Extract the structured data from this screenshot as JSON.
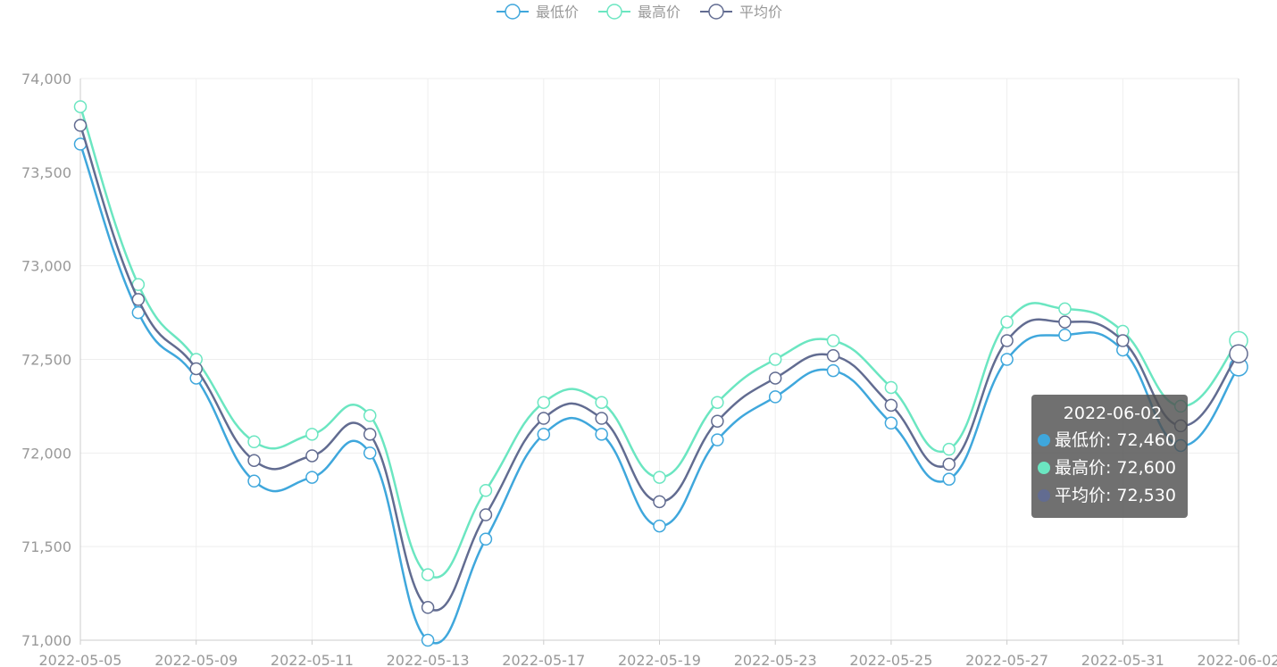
{
  "chart_data": {
    "type": "line",
    "smooth": true,
    "grid": true,
    "categories": [
      "2022-05-05",
      null,
      "2022-05-09",
      null,
      "2022-05-11",
      null,
      "2022-05-13",
      null,
      "2022-05-17",
      null,
      "2022-05-19",
      null,
      "2022-05-23",
      null,
      "2022-05-25",
      null,
      "2022-05-27",
      null,
      "2022-05-31",
      null,
      "2022-06-02"
    ],
    "series": [
      {
        "name": "最低价",
        "color": "#3fa7dc",
        "values": [
          73650,
          72750,
          72400,
          71850,
          71870,
          72000,
          71000,
          71540,
          72100,
          72100,
          71610,
          72070,
          72300,
          72440,
          72160,
          71860,
          72500,
          72630,
          72550,
          72040,
          72460
        ]
      },
      {
        "name": "最高价",
        "color": "#6be6c1",
        "values": [
          73850,
          72900,
          72500,
          72060,
          72100,
          72200,
          71350,
          71800,
          72270,
          72270,
          71870,
          72270,
          72500,
          72600,
          72350,
          72020,
          72700,
          72770,
          72650,
          72250,
          72600
        ]
      },
      {
        "name": "平均价",
        "color": "#626c91",
        "values": [
          73750,
          72820,
          72450,
          71960,
          71985,
          72100,
          71175,
          71670,
          72185,
          72185,
          71740,
          72170,
          72400,
          72520,
          72255,
          71940,
          72600,
          72700,
          72600,
          72145,
          72530
        ]
      }
    ],
    "ylim": [
      71000,
      74000
    ],
    "yticks": [
      {
        "value": 71000,
        "label": "71,000"
      },
      {
        "value": 71500,
        "label": "71,500"
      },
      {
        "value": 72000,
        "label": "72,000"
      },
      {
        "value": 72500,
        "label": "72,500"
      },
      {
        "value": 73000,
        "label": "73,000"
      },
      {
        "value": 73500,
        "label": "73,500"
      },
      {
        "value": 74000,
        "label": "74,000"
      }
    ],
    "tooltip": {
      "x": "2022-06-02",
      "value_labels": [
        "72,460",
        "72,600",
        "72,530"
      ]
    }
  }
}
